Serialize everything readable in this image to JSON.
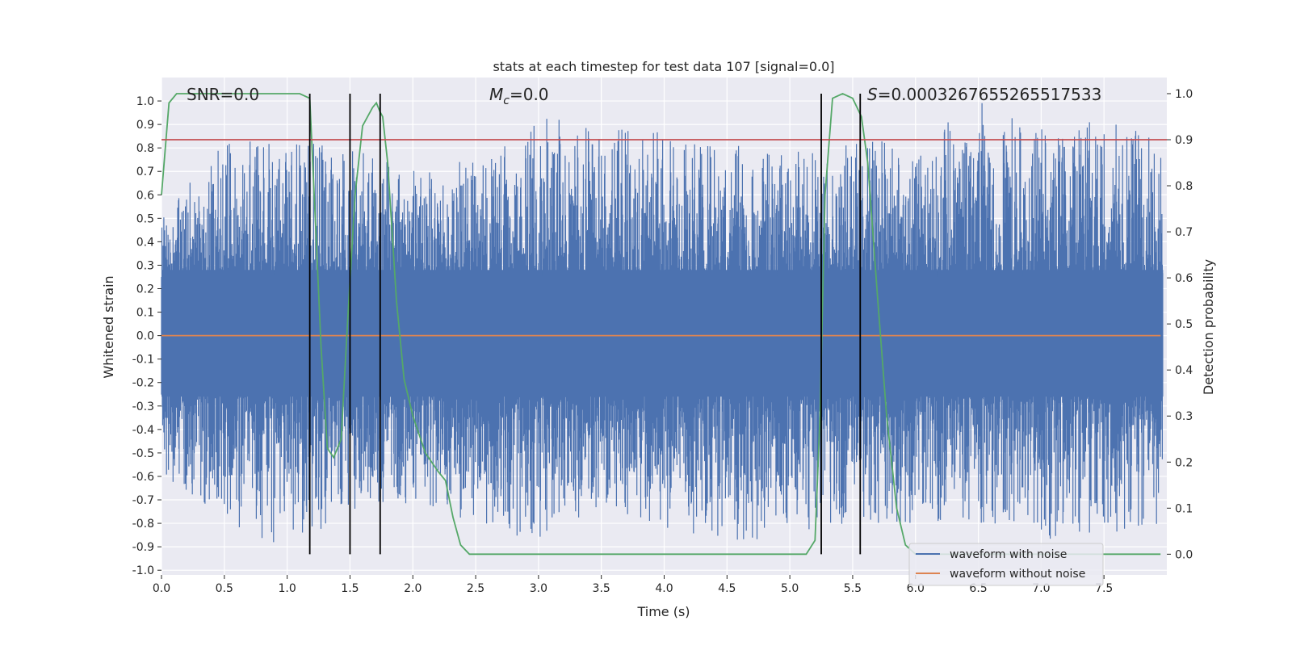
{
  "chart_data": {
    "type": "line",
    "title": "stats at each timestep for test data 107 [signal=0.0]",
    "xlabel": "Time (s)",
    "ylabel": "Whitened strain",
    "ylabel_right": "Detection probability",
    "xlim": [
      0.0,
      8.0
    ],
    "ylim": [
      -1.02,
      1.1
    ],
    "ylim_right": [
      -0.045,
      1.035
    ],
    "x_ticks": [
      "0.0",
      "0.5",
      "1.0",
      "1.5",
      "2.0",
      "2.5",
      "3.0",
      "3.5",
      "4.0",
      "4.5",
      "5.0",
      "5.5",
      "6.0",
      "6.5",
      "7.0",
      "7.5"
    ],
    "y_ticks": [
      "-1.0",
      "-0.9",
      "-0.8",
      "-0.7",
      "-0.6",
      "-0.5",
      "-0.4",
      "-0.3",
      "-0.2",
      "-0.1",
      "0.0",
      "0.1",
      "0.2",
      "0.3",
      "0.4",
      "0.5",
      "0.6",
      "0.7",
      "0.8",
      "0.9",
      "1.0"
    ],
    "y_ticks_right": [
      "0.0",
      "0.1",
      "0.2",
      "0.3",
      "0.4",
      "0.5",
      "0.6",
      "0.7",
      "0.8",
      "0.9",
      "1.0"
    ],
    "annotations": {
      "snr": "SNR=0.0",
      "mc_symbol": "M",
      "mc_sub": "c",
      "mc_value": "=0.0",
      "s_symbol": "S",
      "s_value": "=0.00032676552655175​33"
    },
    "legend": {
      "position": "lower right",
      "entries": [
        {
          "label": "waveform with noise",
          "color": "#4c72b0"
        },
        {
          "label": "waveform without noise",
          "color": "#dd8452"
        }
      ]
    },
    "series": [
      {
        "name": "waveform with noise",
        "color": "#4c72b0",
        "kind": "noise",
        "envelope_pos": [
          [
            0.0,
            0.55
          ],
          [
            0.5,
            0.82
          ],
          [
            1.0,
            0.85
          ],
          [
            1.5,
            0.8
          ],
          [
            2.0,
            0.7
          ],
          [
            2.5,
            0.82
          ],
          [
            3.0,
            0.94
          ],
          [
            3.5,
            0.89
          ],
          [
            4.0,
            0.88
          ],
          [
            4.5,
            0.82
          ],
          [
            5.0,
            0.78
          ],
          [
            5.5,
            0.82
          ],
          [
            6.0,
            0.84
          ],
          [
            6.5,
            1.0
          ],
          [
            7.0,
            0.9
          ],
          [
            7.5,
            0.93
          ],
          [
            8.0,
            0.87
          ]
        ],
        "envelope_neg": [
          [
            0.0,
            -0.6
          ],
          [
            0.5,
            -0.8
          ],
          [
            1.0,
            -0.92
          ],
          [
            1.5,
            -0.75
          ],
          [
            2.0,
            -0.72
          ],
          [
            2.5,
            -0.8
          ],
          [
            3.0,
            -0.88
          ],
          [
            3.5,
            -0.72
          ],
          [
            4.0,
            -0.83
          ],
          [
            4.5,
            -0.9
          ],
          [
            5.0,
            -0.85
          ],
          [
            5.5,
            -0.8
          ],
          [
            6.0,
            -0.8
          ],
          [
            6.5,
            -0.8
          ],
          [
            7.0,
            -0.88
          ],
          [
            7.5,
            -0.85
          ],
          [
            8.0,
            -0.8
          ]
        ]
      },
      {
        "name": "waveform without noise",
        "color": "#dd8452",
        "axis": "left",
        "points": [
          [
            0.0,
            0.0
          ],
          [
            7.95,
            0.0
          ]
        ]
      },
      {
        "name": "detection probability",
        "color": "#55a868",
        "axis": "right",
        "points": [
          [
            0.0,
            0.78
          ],
          [
            0.06,
            0.98
          ],
          [
            0.12,
            1.0
          ],
          [
            1.0,
            1.0
          ],
          [
            1.1,
            1.0
          ],
          [
            1.18,
            0.99
          ],
          [
            1.22,
            0.75
          ],
          [
            1.27,
            0.45
          ],
          [
            1.32,
            0.23
          ],
          [
            1.37,
            0.21
          ],
          [
            1.43,
            0.25
          ],
          [
            1.48,
            0.5
          ],
          [
            1.54,
            0.78
          ],
          [
            1.6,
            0.93
          ],
          [
            1.68,
            0.97
          ],
          [
            1.71,
            0.98
          ],
          [
            1.74,
            0.96
          ],
          [
            1.76,
            0.95
          ],
          [
            1.8,
            0.85
          ],
          [
            1.87,
            0.55
          ],
          [
            1.93,
            0.38
          ],
          [
            2.0,
            0.3
          ],
          [
            2.1,
            0.22
          ],
          [
            2.2,
            0.18
          ],
          [
            2.26,
            0.16
          ],
          [
            2.32,
            0.08
          ],
          [
            2.38,
            0.02
          ],
          [
            2.45,
            0.0
          ],
          [
            3.0,
            0.0
          ],
          [
            4.0,
            0.0
          ],
          [
            5.0,
            0.0
          ],
          [
            5.13,
            0.0
          ],
          [
            5.2,
            0.03
          ],
          [
            5.24,
            0.3
          ],
          [
            5.28,
            0.78
          ],
          [
            5.34,
            0.99
          ],
          [
            5.42,
            1.0
          ],
          [
            5.5,
            0.99
          ],
          [
            5.57,
            0.95
          ],
          [
            5.62,
            0.85
          ],
          [
            5.7,
            0.55
          ],
          [
            5.77,
            0.3
          ],
          [
            5.85,
            0.1
          ],
          [
            5.92,
            0.02
          ],
          [
            6.0,
            0.0
          ],
          [
            7.0,
            0.0
          ],
          [
            7.95,
            0.0
          ]
        ]
      },
      {
        "name": "threshold",
        "color": "#c44e52",
        "axis": "right",
        "points": [
          [
            0.0,
            0.9
          ],
          [
            8.0,
            0.9
          ]
        ]
      }
    ],
    "vlines": [
      1.18,
      1.5,
      1.74,
      5.25,
      5.56
    ]
  }
}
